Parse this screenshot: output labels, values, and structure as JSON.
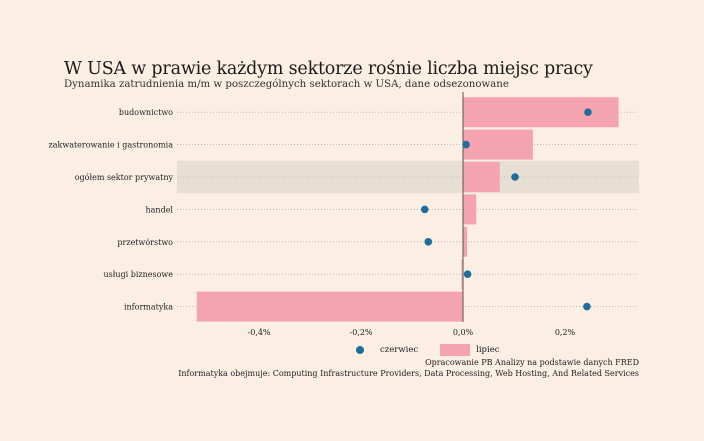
{
  "title": "W USA w prawie każdym sektorze rośnie liczba miejsc pracy",
  "subtitle": "Dynamika zatrudnienia m/m w poszczególnych sektorach w USA, dane odsezonowane",
  "colors": {
    "background": "#fbeee3",
    "bar": "#f5a3b0",
    "dot": "#1f6e9a",
    "highlight": "#e8dfd4",
    "zero_line": "#555555"
  },
  "legend": {
    "dot_label": "czerwiec",
    "bar_label": "lipiec"
  },
  "source_line1": "Opracowanie PB Analizy na podstawie danych FRED",
  "source_line2": "Informatyka obejmuje: Computing Infrastructure Providers, Data Processing, Web Hosting, And Related Services",
  "chart_data": {
    "type": "bar",
    "orientation": "horizontal",
    "categories": [
      "budownictwo",
      "zakwaterowanie i gastronomia",
      "ogółem sektor prywatny",
      "handel",
      "przetwórstwo",
      "usługi biznesowe",
      "informatyka"
    ],
    "highlighted_category": "ogółem sektor prywatny",
    "series": [
      {
        "name": "lipiec",
        "mark": "bar",
        "values": [
          0.305,
          0.137,
          0.072,
          0.026,
          0.008,
          -0.003,
          -0.522
        ]
      },
      {
        "name": "czerwiec",
        "mark": "dot",
        "values": [
          0.245,
          0.006,
          0.102,
          -0.075,
          -0.068,
          0.009,
          0.243
        ]
      }
    ],
    "xlim": [
      -0.56,
      0.35
    ],
    "x_ticks": [
      -0.4,
      -0.2,
      0.0,
      0.2
    ],
    "x_tick_labels": [
      "-0,4%",
      "-0,2%",
      "0,0%",
      "0,2%"
    ],
    "grid": "horizontal dotted",
    "legend_position": "bottom"
  }
}
